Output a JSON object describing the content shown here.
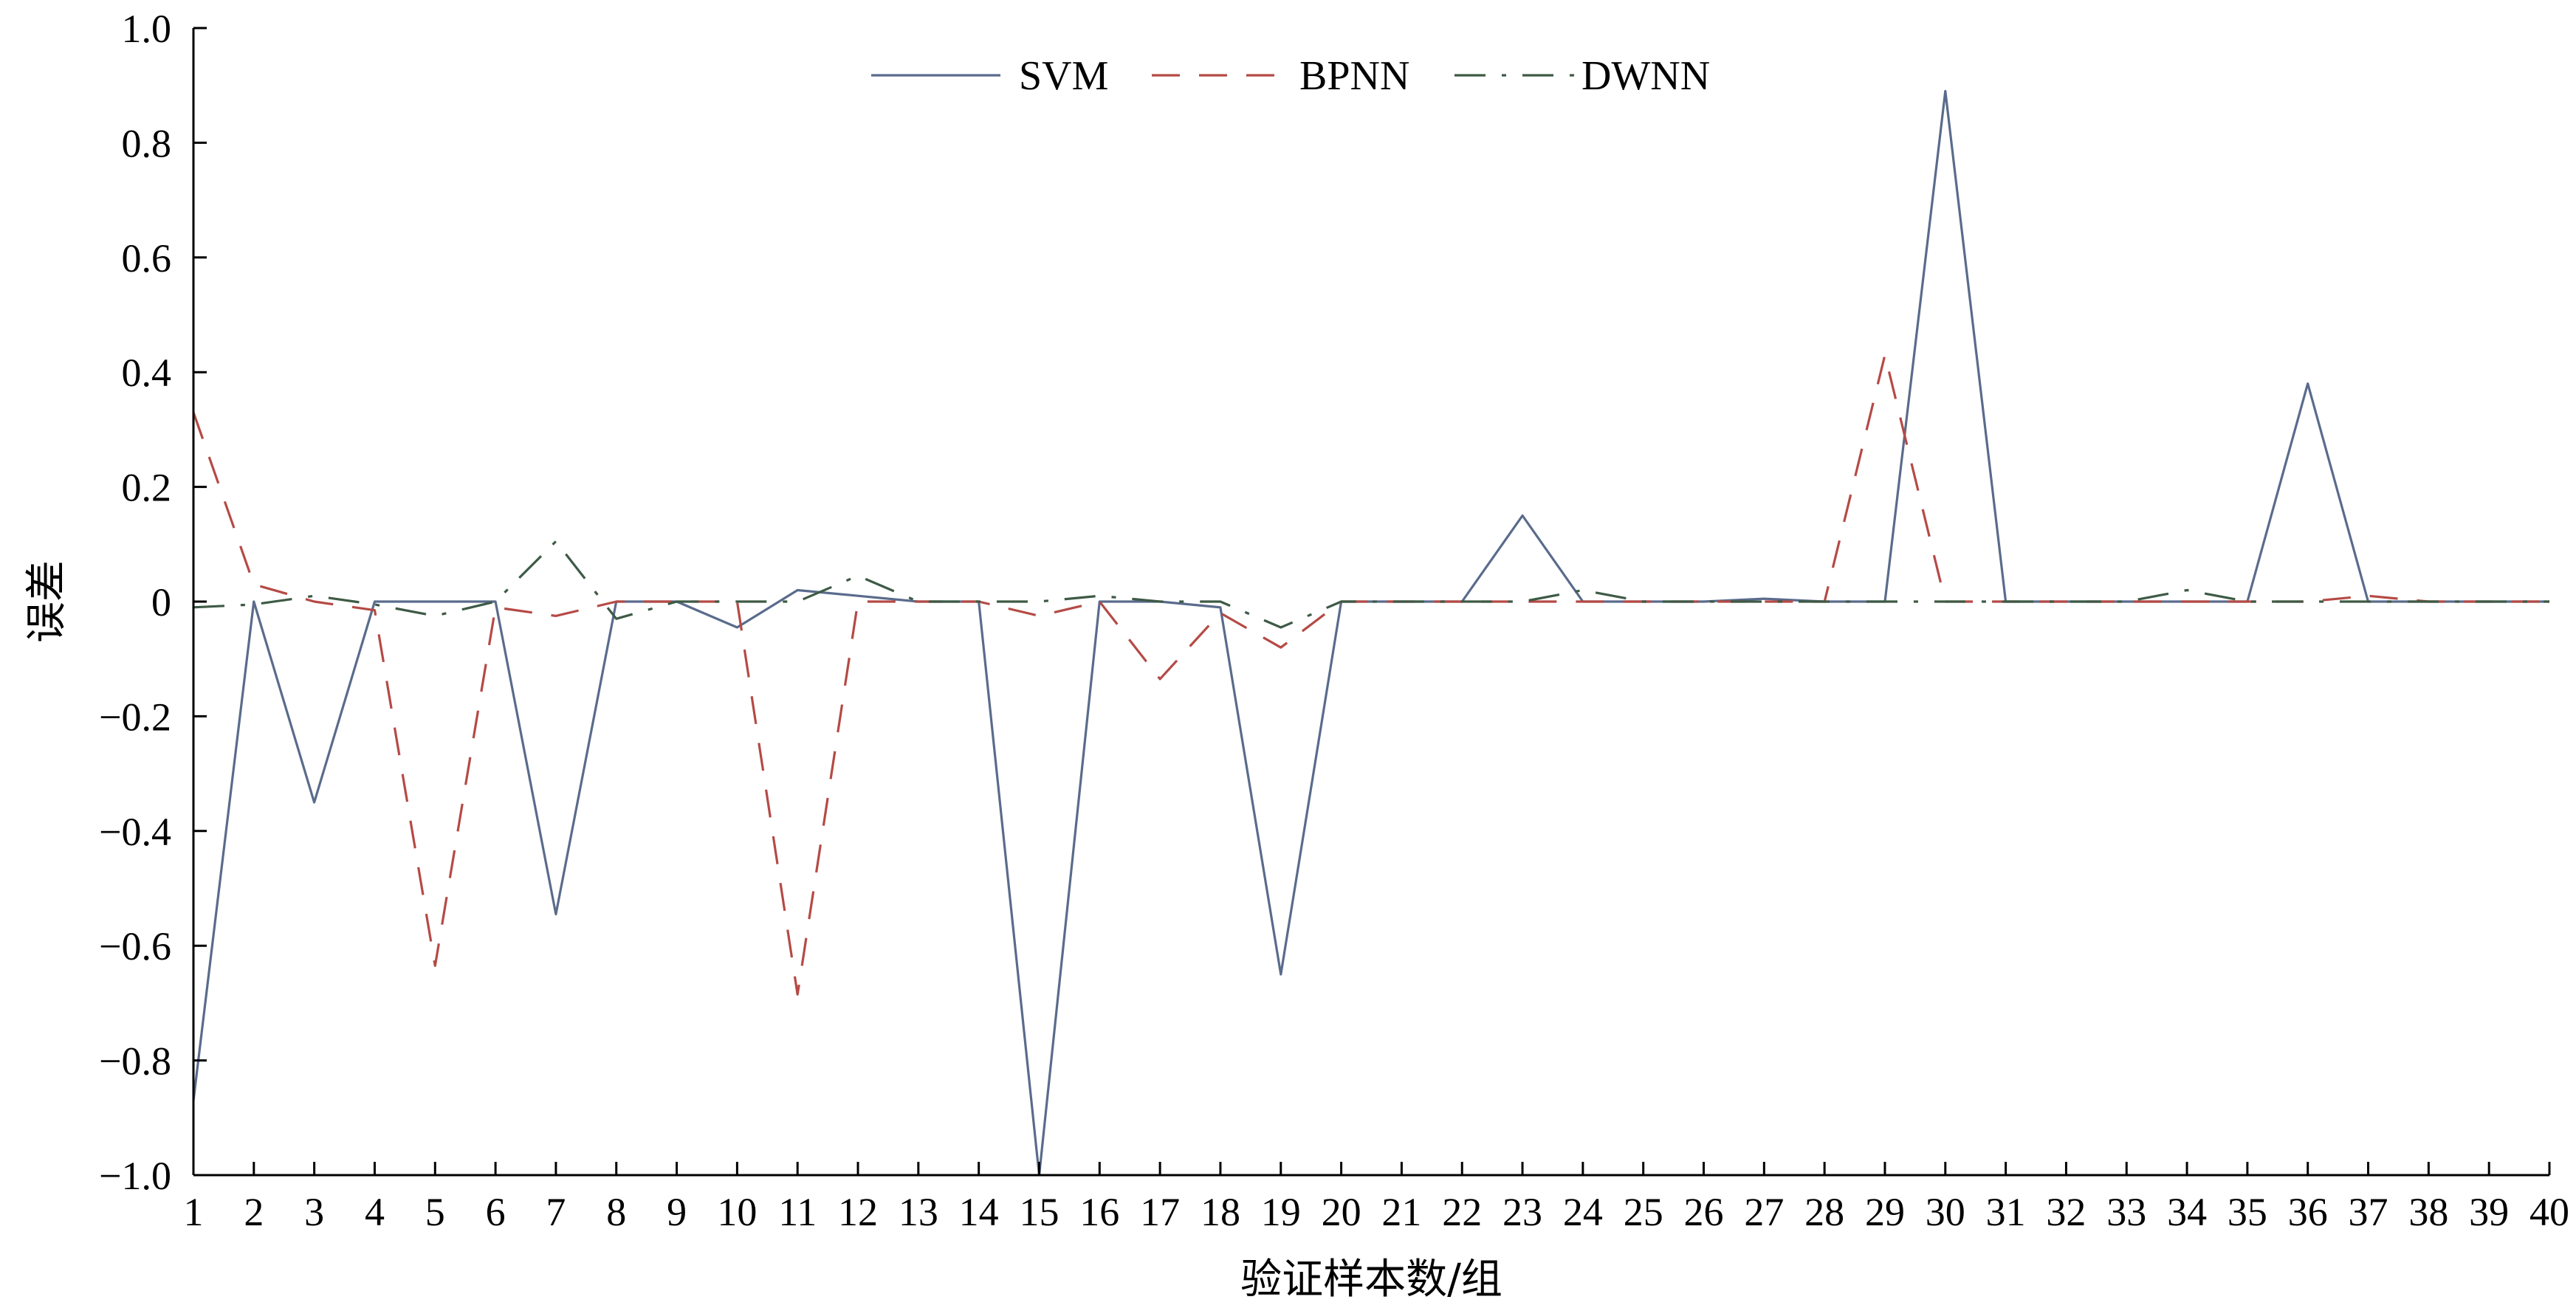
{
  "chart_data": {
    "type": "line",
    "title": "",
    "xlabel": "验证样本数/组",
    "ylabel": "误差",
    "xlim": [
      1,
      40
    ],
    "ylim": [
      -1.0,
      1.0
    ],
    "grid": false,
    "legend_position": "top-center",
    "x": [
      1,
      2,
      3,
      4,
      5,
      6,
      7,
      8,
      9,
      10,
      11,
      12,
      13,
      14,
      15,
      16,
      17,
      18,
      19,
      20,
      21,
      22,
      23,
      24,
      25,
      26,
      27,
      28,
      29,
      30,
      31,
      32,
      33,
      34,
      35,
      36,
      37,
      38,
      39,
      40
    ],
    "x_tick_labels": [
      "1",
      "2",
      "3",
      "4",
      "5",
      "6",
      "7",
      "8",
      "9",
      "10",
      "11",
      "12",
      "13",
      "14",
      "15",
      "16",
      "17",
      "18",
      "19",
      "20",
      "21",
      "22",
      "23",
      "24",
      "25",
      "26",
      "27",
      "28",
      "29",
      "30",
      "31",
      "32",
      "33",
      "34",
      "35",
      "36",
      "37",
      "38",
      "39",
      "40"
    ],
    "y_ticks": [
      -1.0,
      -0.8,
      -0.6,
      -0.4,
      -0.2,
      0,
      0.2,
      0.4,
      0.6,
      0.8,
      1.0
    ],
    "y_tick_labels": [
      "−1.0",
      "−0.8",
      "−0.6",
      "−0.4",
      "−0.2",
      "0",
      "0.2",
      "0.4",
      "0.6",
      "0.8",
      "1.0"
    ],
    "series": [
      {
        "name": "SVM",
        "color": "#5a6b8c",
        "dash": "solid",
        "values": [
          -0.87,
          0,
          -0.35,
          0,
          0,
          0,
          -0.545,
          0,
          0,
          -0.045,
          0.02,
          0.01,
          0,
          0,
          -1.0,
          0,
          0,
          -0.01,
          -0.65,
          0,
          0,
          0,
          0.15,
          0,
          0,
          0,
          0.005,
          0,
          0,
          0.89,
          0,
          0,
          0,
          0,
          0,
          0.38,
          0,
          0,
          0,
          0
        ]
      },
      {
        "name": "BPNN",
        "color": "#b54a45",
        "dash": "dashed",
        "values": [
          0.33,
          0.03,
          0,
          -0.015,
          -0.635,
          -0.01,
          -0.025,
          0,
          0,
          0,
          -0.685,
          0,
          0,
          0,
          -0.025,
          0,
          -0.135,
          -0.02,
          -0.08,
          0,
          0,
          0,
          0,
          0,
          0,
          0,
          0,
          0,
          0.43,
          0,
          0,
          0,
          0,
          0,
          0,
          0,
          0.01,
          0,
          0,
          0
        ]
      },
      {
        "name": "DWNN",
        "color": "#3d5a45",
        "dash": "dashdot",
        "values": [
          -0.01,
          -0.005,
          0.01,
          -0.005,
          -0.025,
          0,
          0.105,
          -0.03,
          0,
          0,
          0,
          0.045,
          0,
          0,
          0,
          0.01,
          0,
          0,
          -0.045,
          0,
          0,
          0,
          0,
          0.02,
          0,
          0,
          0,
          0,
          0,
          0,
          0,
          0,
          0,
          0.02,
          0,
          0,
          0,
          0,
          0,
          0
        ]
      }
    ]
  }
}
